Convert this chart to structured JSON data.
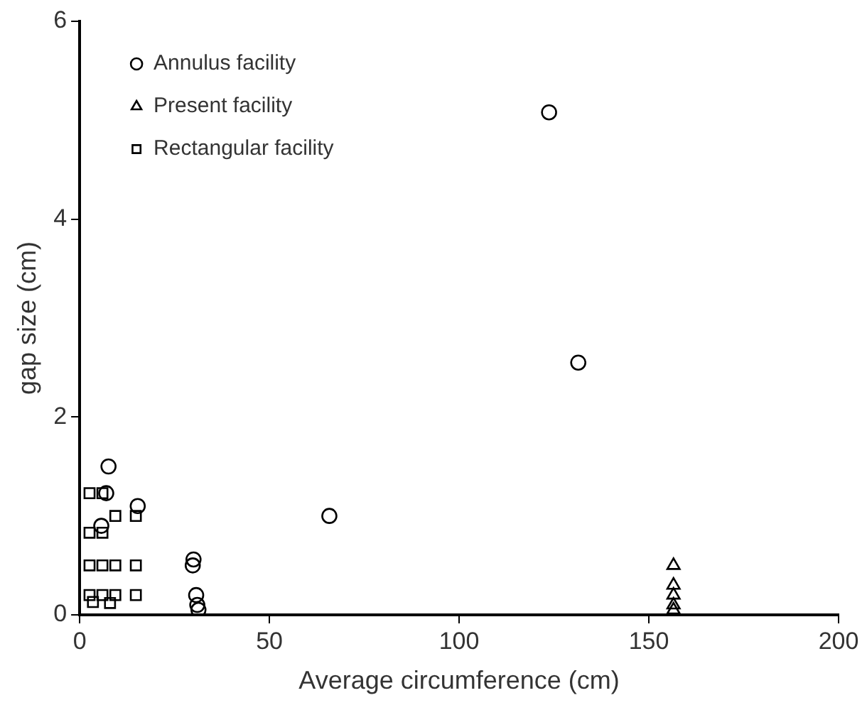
{
  "chart_data": {
    "type": "scatter",
    "xlabel": "Average circumference (cm)",
    "ylabel": "gap size (cm)",
    "xlim": [
      0,
      200
    ],
    "xticks": [
      0,
      50,
      100,
      150,
      200
    ],
    "ylim": [
      0,
      6
    ],
    "yticks": [
      0,
      2,
      4,
      6
    ],
    "grid": false,
    "legend": "top left",
    "series": [
      {
        "name": "Annulus facility",
        "color": "#000000",
        "marker": "circle",
        "x": [
          123.7,
          131.4,
          7.6,
          7.0,
          15.3,
          5.7,
          65.8,
          30,
          29.8,
          30.7,
          31,
          31.3
        ],
        "values": [
          5.08,
          2.55,
          1.5,
          1.23,
          1.1,
          0.9,
          1.0,
          0.56,
          0.5,
          0.2,
          0.1,
          0.05
        ]
      },
      {
        "name": "Present facility",
        "color": "#000000",
        "marker": "triangle",
        "x": [
          156.5,
          156.5,
          156.5,
          156.5,
          156.5
        ],
        "values": [
          0.5,
          0.3,
          0.2,
          0.1,
          0.05
        ]
      },
      {
        "name": "Rectangular facility",
        "color": "#000000",
        "marker": "square",
        "x": [
          2.6,
          6,
          9.4,
          14.8,
          2.6,
          6,
          2.6,
          6,
          9.4,
          14.8,
          2.6,
          6,
          9.4,
          14.8,
          3.5,
          8
        ],
        "values": [
          1.23,
          1.23,
          1.0,
          1.0,
          0.83,
          0.83,
          0.5,
          0.5,
          0.5,
          0.5,
          0.2,
          0.2,
          0.2,
          0.2,
          0.13,
          0.12
        ]
      }
    ]
  }
}
